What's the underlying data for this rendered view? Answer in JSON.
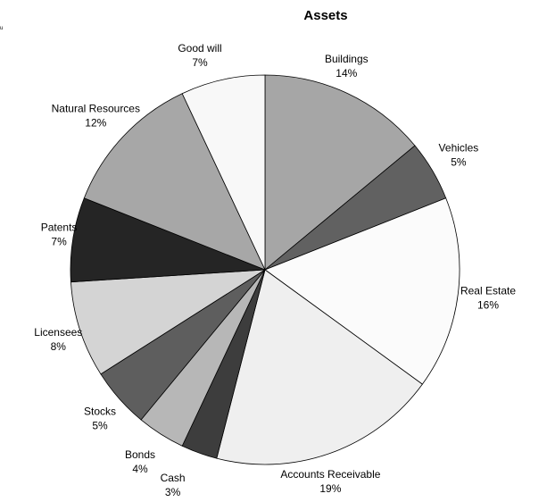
{
  "chart_data": {
    "type": "pie",
    "title": "Assets",
    "corner_mark": "u",
    "slices": [
      {
        "label": "Buildings",
        "pct_label": "14%",
        "value": 14,
        "color": "#a6a6a6"
      },
      {
        "label": "Vehicles",
        "pct_label": "5%",
        "value": 5,
        "color": "#616161"
      },
      {
        "label": "Real Estate",
        "pct_label": "16%",
        "value": 16,
        "color": "#fbfbfb"
      },
      {
        "label": "Accounts Receivable",
        "pct_label": "19%",
        "value": 19,
        "color": "#efefef"
      },
      {
        "label": "Cash",
        "pct_label": "3%",
        "value": 3,
        "color": "#3d3d3d"
      },
      {
        "label": "Bonds",
        "pct_label": "4%",
        "value": 4,
        "color": "#b7b7b7"
      },
      {
        "label": "Stocks",
        "pct_label": "5%",
        "value": 5,
        "color": "#5e5e5e"
      },
      {
        "label": "Licensees",
        "pct_label": "8%",
        "value": 8,
        "color": "#d4d4d4"
      },
      {
        "label": "Patents",
        "pct_label": "7%",
        "value": 7,
        "color": "#252525"
      },
      {
        "label": "Natural Resources",
        "pct_label": "12%",
        "value": 12,
        "color": "#a7a7a7"
      },
      {
        "label": "Good will",
        "pct_label": "7%",
        "value": 7,
        "color": "#f8f8f8"
      }
    ],
    "start": "12 o'clock",
    "direction": "clockwise",
    "legend": "none"
  }
}
